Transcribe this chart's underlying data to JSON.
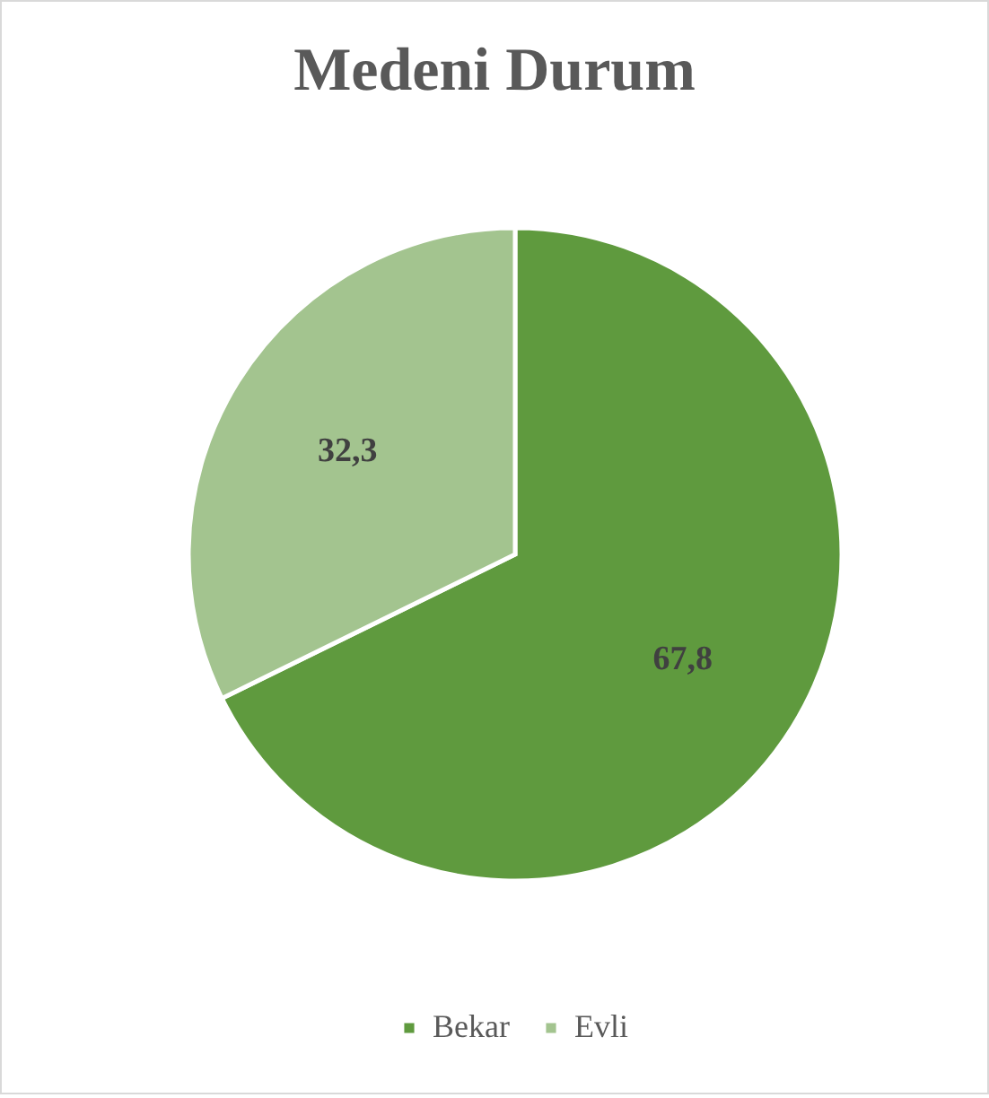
{
  "chart_data": {
    "type": "pie",
    "title": "Medeni Durum",
    "categories": [
      "Bekar",
      "Evli"
    ],
    "values": [
      67.8,
      32.3
    ],
    "value_labels": [
      "67,8",
      "32,3"
    ],
    "colors": [
      "#5f9a3e",
      "#a3c48f"
    ],
    "legend": "bottom"
  }
}
